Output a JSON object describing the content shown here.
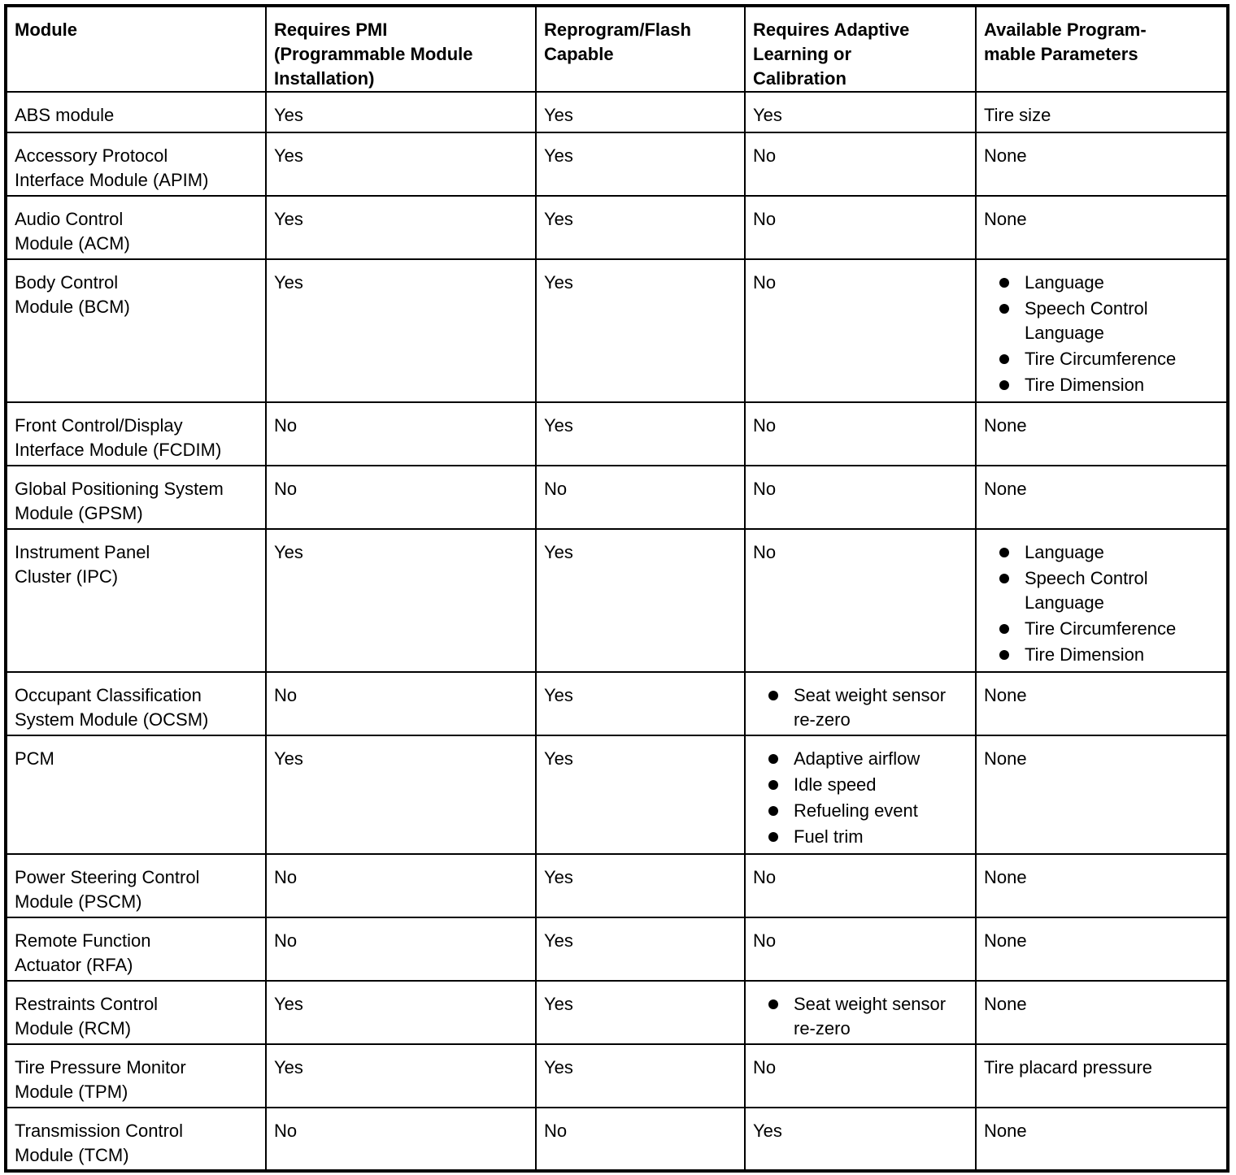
{
  "headers": [
    "Module",
    "Requires PMI\n(Programmable Module\nInstallation)",
    "Reprogram/Flash\nCapable",
    "Requires Adaptive\nLearning or\nCalibration",
    "Available Program-\nmable Parameters"
  ],
  "rows": [
    {
      "module": "ABS module",
      "pmi": "Yes",
      "flash": "Yes",
      "adaptive": "Yes",
      "params": "Tire size"
    },
    {
      "module": "Accessory Protocol\nInterface Module (APIM)",
      "pmi": "Yes",
      "flash": "Yes",
      "adaptive": "No",
      "params": "None"
    },
    {
      "module": "Audio Control\nModule (ACM)",
      "pmi": "Yes",
      "flash": "Yes",
      "adaptive": "No",
      "params": "None"
    },
    {
      "module": "Body Control\nModule (BCM)",
      "pmi": "Yes",
      "flash": "Yes",
      "adaptive": "No",
      "params": [
        "Language",
        "Speech Control\nLanguage",
        "Tire Circumference",
        "Tire Dimension"
      ]
    },
    {
      "module": "Front Control/Display\nInterface Module (FCDIM)",
      "pmi": "No",
      "flash": "Yes",
      "adaptive": "No",
      "params": "None"
    },
    {
      "module": "Global Positioning System\nModule (GPSM)",
      "pmi": "No",
      "flash": "No",
      "adaptive": "No",
      "params": "None"
    },
    {
      "module": "Instrument Panel\nCluster (IPC)",
      "pmi": "Yes",
      "flash": "Yes",
      "adaptive": "No",
      "params": [
        "Language",
        "Speech Control\nLanguage",
        "Tire Circumference",
        "Tire Dimension"
      ]
    },
    {
      "module": "Occupant Classification\nSystem Module (OCSM)",
      "pmi": "No",
      "flash": "Yes",
      "adaptive": [
        "Seat weight sensor\nre-zero"
      ],
      "params": "None"
    },
    {
      "module": "PCM",
      "pmi": "Yes",
      "flash": "Yes",
      "adaptive": [
        "Adaptive airflow",
        "Idle speed",
        "Refueling event",
        "Fuel trim"
      ],
      "params": "None"
    },
    {
      "module": "Power Steering Control\nModule (PSCM)",
      "pmi": "No",
      "flash": "Yes",
      "adaptive": "No",
      "params": "None"
    },
    {
      "module": "Remote Function\nActuator (RFA)",
      "pmi": "No",
      "flash": "Yes",
      "adaptive": "No",
      "params": "None"
    },
    {
      "module": "Restraints Control\nModule (RCM)",
      "pmi": "Yes",
      "flash": "Yes",
      "adaptive": [
        "Seat weight sensor\nre-zero"
      ],
      "params": "None"
    },
    {
      "module": "Tire Pressure Monitor\nModule (TPM)",
      "pmi": "Yes",
      "flash": "Yes",
      "adaptive": "No",
      "params": "Tire placard pressure"
    },
    {
      "module": "Transmission Control\nModule (TCM)",
      "pmi": "No",
      "flash": "No",
      "adaptive": "Yes",
      "params": "None"
    }
  ]
}
